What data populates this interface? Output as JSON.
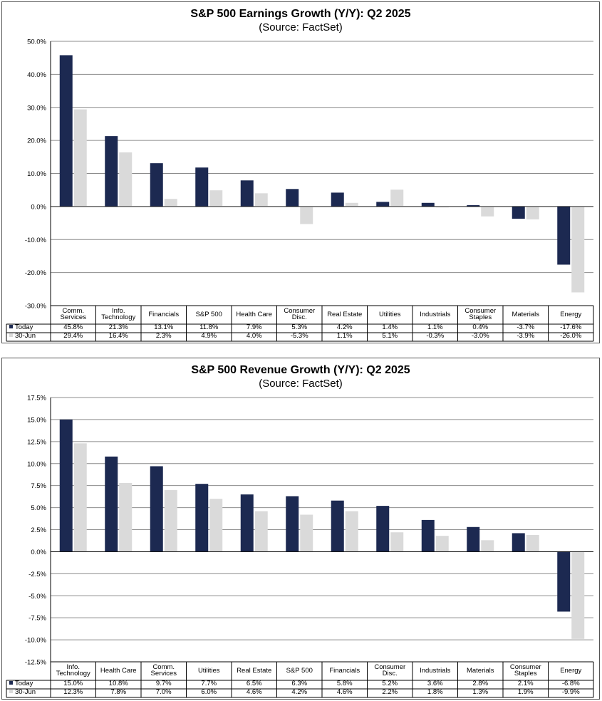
{
  "colors": {
    "today": "#1c2951",
    "june": "#dadada",
    "grid": "#8c8c8c",
    "border": "#555555"
  },
  "charts": [
    {
      "chart_data": {
        "type": "bar",
        "title": "S&P 500 Earnings Growth (Y/Y): Q2 2025",
        "subtitle": "(Source: FactSet)",
        "categories": [
          "Comm. Services",
          "Info. Technology",
          "Financials",
          "S&P 500",
          "Health Care",
          "Consumer Disc.",
          "Real Estate",
          "Utilities",
          "Industrials",
          "Consumer Staples",
          "Materials",
          "Energy"
        ],
        "series": [
          {
            "name": "Today",
            "values": [
              45.8,
              21.3,
              13.1,
              11.8,
              7.9,
              5.3,
              4.2,
              1.4,
              1.1,
              0.4,
              -3.7,
              -17.6
            ]
          },
          {
            "name": "30-Jun",
            "values": [
              29.4,
              16.4,
              2.3,
              4.9,
              4.0,
              -5.3,
              1.1,
              5.1,
              -0.3,
              -3.0,
              -3.9,
              -26.0
            ]
          }
        ],
        "ylim": [
          -30,
          50
        ],
        "ytick_step": 10,
        "ytick_labels": [
          "50.0%",
          "40.0%",
          "30.0%",
          "20.0%",
          "10.0%",
          "0.0%",
          "-10.0%",
          "-20.0%",
          "-30.0%"
        ],
        "table_rows": [
          {
            "label": "Today",
            "cells": [
              "45.8%",
              "21.3%",
              "13.1%",
              "11.8%",
              "7.9%",
              "5.3%",
              "4.2%",
              "1.4%",
              "1.1%",
              "0.4%",
              "-3.7%",
              "-17.6%"
            ]
          },
          {
            "label": "30-Jun",
            "cells": [
              "29.4%",
              "16.4%",
              "2.3%",
              "4.9%",
              "4.0%",
              "-5.3%",
              "1.1%",
              "5.1%",
              "-0.3%",
              "-3.0%",
              "-3.9%",
              "-26.0%"
            ]
          }
        ],
        "grid": true,
        "legend": "data-table"
      }
    },
    {
      "chart_data": {
        "type": "bar",
        "title": "S&P 500 Revenue Growth (Y/Y): Q2 2025",
        "subtitle": "(Source: FactSet)",
        "categories": [
          "Info. Technology",
          "Health Care",
          "Comm. Services",
          "Utilities",
          "Real Estate",
          "S&P 500",
          "Financials",
          "Consumer Disc.",
          "Industrials",
          "Materials",
          "Consumer Staples",
          "Energy"
        ],
        "series": [
          {
            "name": "Today",
            "values": [
              15.0,
              10.8,
              9.7,
              7.7,
              6.5,
              6.3,
              5.8,
              5.2,
              3.6,
              2.8,
              2.1,
              -6.8
            ]
          },
          {
            "name": "30-Jun",
            "values": [
              12.3,
              7.8,
              7.0,
              6.0,
              4.6,
              4.2,
              4.6,
              2.2,
              1.8,
              1.3,
              1.9,
              -9.9
            ]
          }
        ],
        "ylim": [
          -12.5,
          17.5
        ],
        "ytick_step": 2.5,
        "ytick_labels": [
          "17.5%",
          "15.0%",
          "12.5%",
          "10.0%",
          "7.5%",
          "5.0%",
          "2.5%",
          "0.0%",
          "-2.5%",
          "-5.0%",
          "-7.5%",
          "-10.0%",
          "-12.5%"
        ],
        "table_rows": [
          {
            "label": "Today",
            "cells": [
              "15.0%",
              "10.8%",
              "9.7%",
              "7.7%",
              "6.5%",
              "6.3%",
              "5.8%",
              "5.2%",
              "3.6%",
              "2.8%",
              "2.1%",
              "-6.8%"
            ]
          },
          {
            "label": "30-Jun",
            "cells": [
              "12.3%",
              "7.8%",
              "7.0%",
              "6.0%",
              "4.6%",
              "4.2%",
              "4.6%",
              "2.2%",
              "1.8%",
              "1.3%",
              "1.9%",
              "-9.9%"
            ]
          }
        ],
        "grid": true,
        "legend": "data-table"
      }
    }
  ]
}
